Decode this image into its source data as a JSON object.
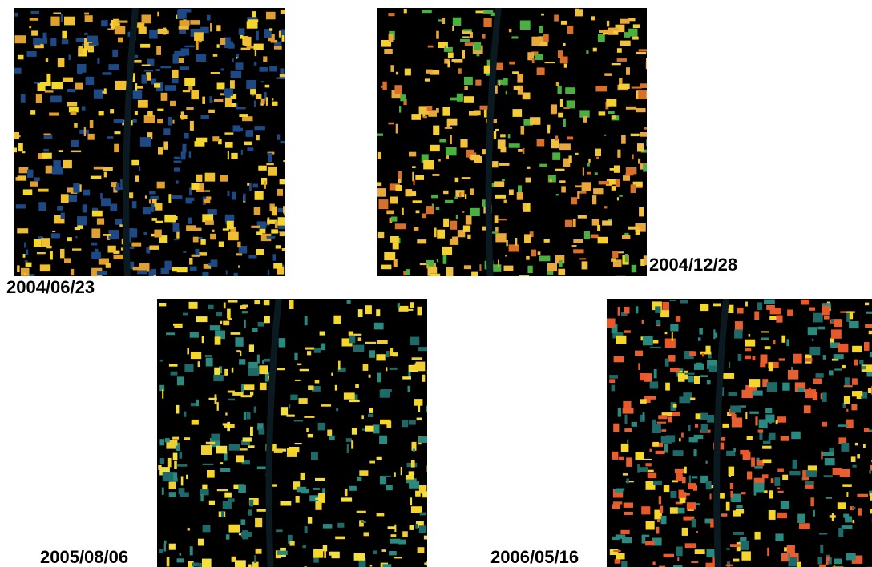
{
  "panels": [
    {
      "label": "2004/06/23"
    },
    {
      "label": "2004/12/28"
    },
    {
      "label": "2005/08/06"
    },
    {
      "label": "2006/05/16"
    }
  ]
}
